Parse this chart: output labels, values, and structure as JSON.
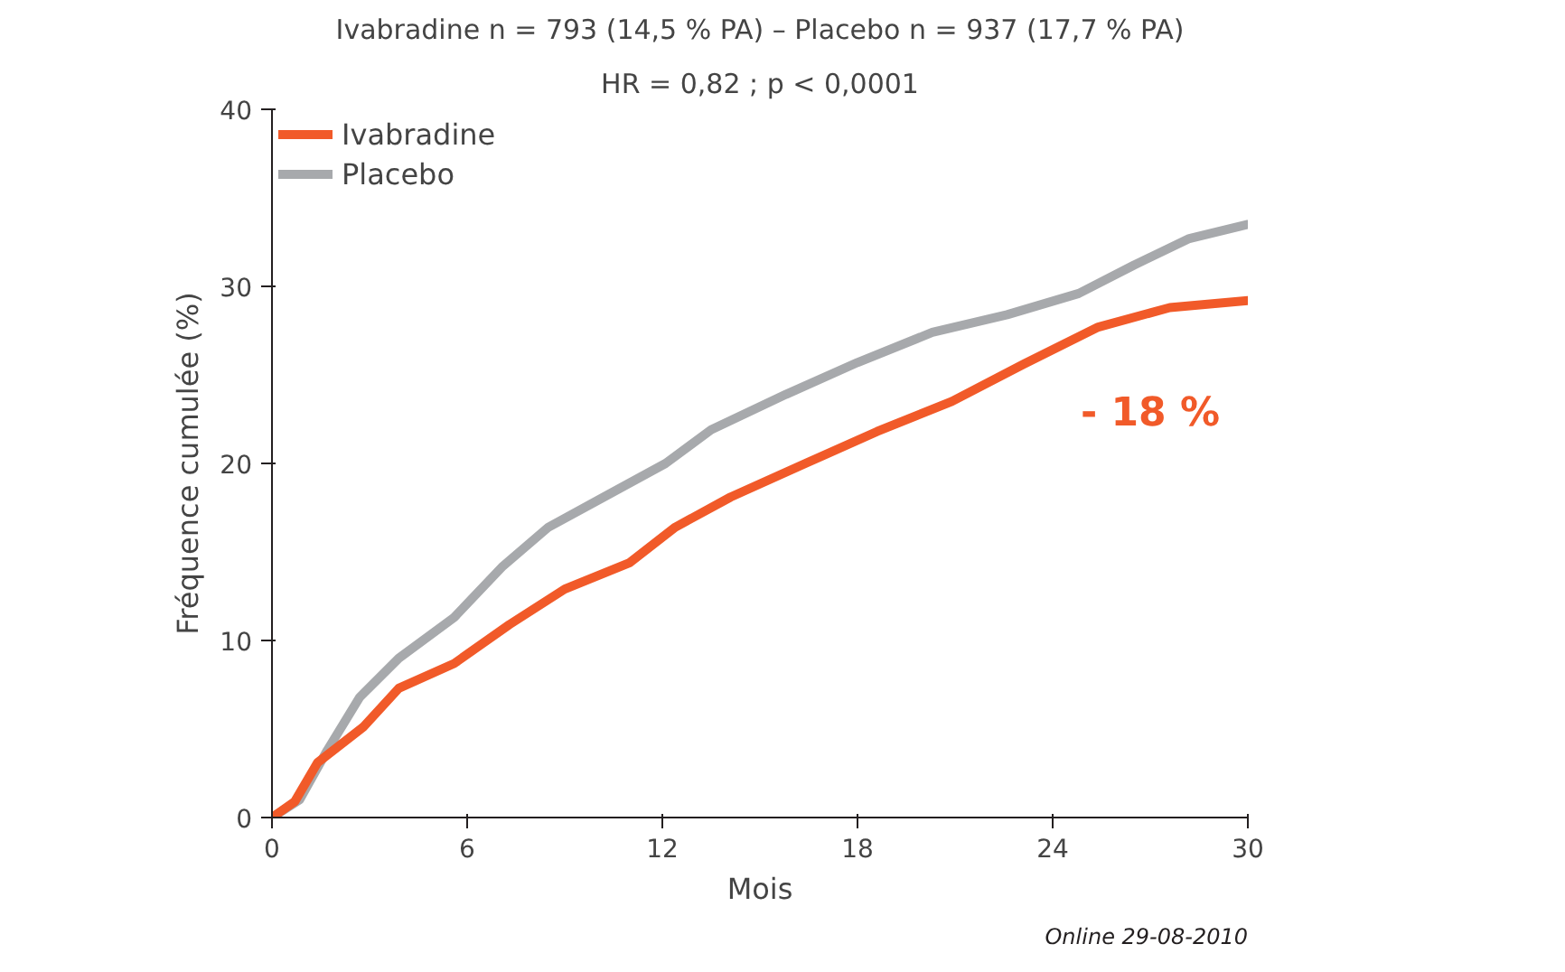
{
  "chart_data": {
    "type": "line",
    "title": "Ivabradine n = 793 (14,5 % PA) – Placebo n = 937 (17,7 % PA)",
    "subtitle": "HR = 0,82 ; p < 0,0001",
    "xlabel": "Mois",
    "ylabel": "Fréquence cumulée (%)",
    "xlim": [
      0,
      30
    ],
    "xticks": [
      0,
      6,
      12,
      18,
      24,
      30
    ],
    "ylim": [
      0,
      40
    ],
    "yticks": [
      0,
      10,
      20,
      30,
      40
    ],
    "grid": false,
    "legend": "top left",
    "series": [
      {
        "name": "Ivabradine",
        "color": "#f15a29",
        "x": [
          0,
          0.7,
          1.4,
          2.8,
          3.9,
          5.6,
          7.3,
          9,
          11,
          12.4,
          14.1,
          16.4,
          18.6,
          20.9,
          23.1,
          25.4,
          27.6,
          30
        ],
        "values": [
          0,
          0.9,
          3.1,
          5.1,
          7.3,
          8.7,
          10.9,
          12.9,
          14.4,
          16.4,
          18.1,
          20,
          21.8,
          23.5,
          25.6,
          27.7,
          28.8,
          29.2
        ]
      },
      {
        "name": "Placebo",
        "color": "#a7a9ac",
        "x": [
          0,
          0.85,
          1.7,
          2.7,
          3.9,
          5.6,
          7.1,
          8.5,
          10.2,
          12.1,
          13.5,
          15.8,
          18,
          20.3,
          22.6,
          24.8,
          26.5,
          28.2,
          30
        ],
        "values": [
          0,
          1,
          3.8,
          6.8,
          9,
          11.3,
          14.2,
          16.4,
          18.1,
          20,
          21.9,
          23.9,
          25.7,
          27.4,
          28.4,
          29.6,
          31.2,
          32.7,
          33.5
        ]
      }
    ],
    "annotations": [
      "- 18 %",
      "Online 29-08-2010"
    ]
  }
}
